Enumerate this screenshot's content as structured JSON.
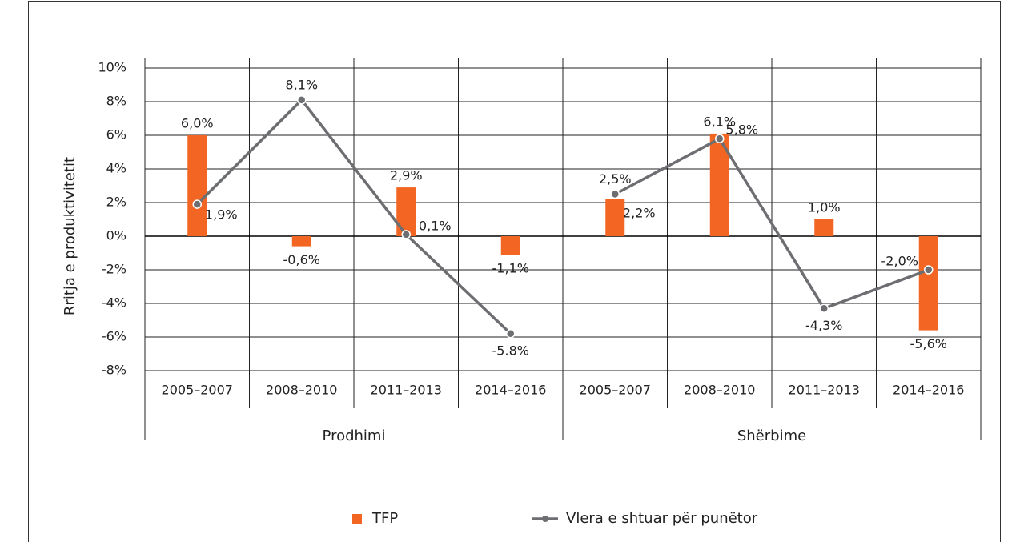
{
  "chart_data": {
    "type": "bar_line",
    "y_label": "Rritja e produktivitetit",
    "groups": [
      {
        "name": "Prodhimi",
        "categories": [
          "2005–2007",
          "2008–2010",
          "2011–2013",
          "2014–2016"
        ]
      },
      {
        "name": "Shërbime",
        "categories": [
          "2005–2007",
          "2008–2010",
          "2011–2013",
          "2014–2016"
        ]
      }
    ],
    "series": [
      {
        "name": "TFP",
        "type": "bar",
        "color": "#f26522",
        "values": [
          6.0,
          -0.6,
          2.9,
          -1.1,
          2.2,
          6.1,
          1.0,
          -5.6
        ],
        "value_labels": [
          "6,0%",
          "-0,6%",
          "2,9%",
          "-1,1%",
          "2,2%",
          "6,1%",
          "1,0%",
          "-5,6%"
        ]
      },
      {
        "name": "Vlera e shtuar për punëtor",
        "type": "line",
        "color": "#6d6e71",
        "values": [
          1.9,
          8.1,
          0.1,
          -5.8,
          2.5,
          5.8,
          -4.3,
          -2.0
        ],
        "value_labels": [
          "1,9%",
          "8,1%",
          "0,1%",
          "-5.8%",
          "2,5%",
          "5,8%",
          "-4,3%",
          "-2,0%"
        ]
      }
    ],
    "ylim": [
      -8,
      10
    ],
    "yticks": [
      {
        "value": -8,
        "label": "-8%"
      },
      {
        "value": -6,
        "label": "-6%"
      },
      {
        "value": -4,
        "label": "-4%"
      },
      {
        "value": -2,
        "label": "-2%"
      },
      {
        "value": 0,
        "label": "0%"
      },
      {
        "value": 2,
        "label": "2%"
      },
      {
        "value": 4,
        "label": "4%"
      },
      {
        "value": 6,
        "label": "6%"
      },
      {
        "value": 8,
        "label": "8%"
      },
      {
        "value": 10,
        "label": "10%"
      }
    ],
    "grid": true,
    "legend": "bottom"
  }
}
